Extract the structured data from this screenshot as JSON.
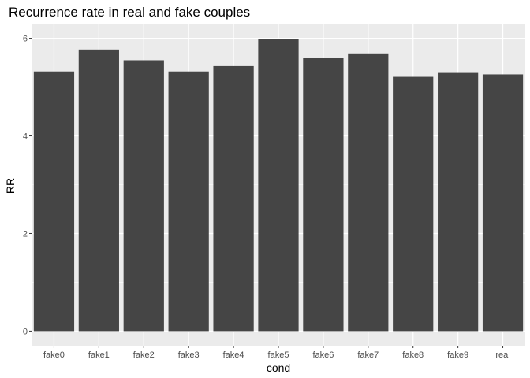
{
  "chart_data": {
    "type": "bar",
    "title": "Recurrence rate in real and fake couples",
    "xlabel": "cond",
    "ylabel": "RR",
    "categories": [
      "fake0",
      "fake1",
      "fake2",
      "fake3",
      "fake4",
      "fake5",
      "fake6",
      "fake7",
      "fake8",
      "fake9",
      "real"
    ],
    "values": [
      5.32,
      5.77,
      5.55,
      5.32,
      5.43,
      5.98,
      5.59,
      5.69,
      5.21,
      5.29,
      5.26
    ],
    "ylim": [
      -0.3,
      6.3
    ],
    "yticks": [
      0,
      2,
      4,
      6
    ],
    "grid": true,
    "bar_color": "#454545",
    "panel_color": "#ebebeb",
    "grid_color": "#ffffff"
  }
}
